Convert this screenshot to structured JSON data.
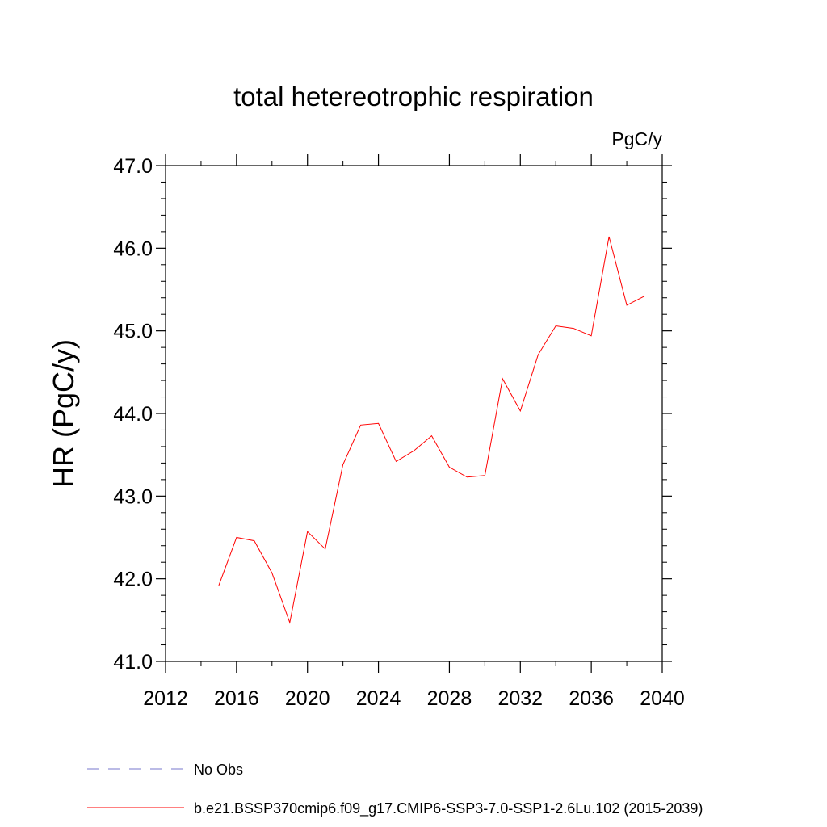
{
  "chart_data": {
    "type": "line",
    "title": "total hetereotrophic respiration",
    "units": "PgC/y",
    "ylabel": "HR  (PgC/y)",
    "xlabel": "",
    "xlim": [
      2012,
      2040
    ],
    "ylim": [
      41.0,
      47.0
    ],
    "x_ticks": [
      2012,
      2016,
      2020,
      2024,
      2028,
      2032,
      2036,
      2040
    ],
    "y_ticks": [
      "41.0",
      "42.0",
      "43.0",
      "44.0",
      "45.0",
      "46.0",
      "47.0"
    ],
    "series": [
      {
        "name": "b.e21.BSSP370cmip6.f09_g17.CMIP6-SSP3-7.0-SSP1-2.6Lu.102 (2015-2039)",
        "color": "#ff0000",
        "x": [
          2015,
          2016,
          2017,
          2018,
          2019,
          2020,
          2021,
          2022,
          2023,
          2024,
          2025,
          2026,
          2027,
          2028,
          2029,
          2030,
          2031,
          2032,
          2033,
          2034,
          2035,
          2036,
          2037,
          2038,
          2039
        ],
        "y": [
          41.92,
          42.5,
          42.46,
          42.07,
          41.47,
          42.57,
          42.36,
          43.38,
          43.86,
          43.88,
          43.42,
          43.55,
          43.73,
          43.35,
          43.23,
          43.25,
          44.42,
          44.03,
          44.71,
          45.06,
          45.03,
          44.94,
          46.14,
          45.31,
          45.42
        ]
      }
    ],
    "legend": [
      {
        "label": "No Obs",
        "color": "#7777cc",
        "style": "dashed"
      },
      {
        "label": "b.e21.BSSP370cmip6.f09_g17.CMIP6-SSP3-7.0-SSP1-2.6Lu.102 (2015-2039)",
        "color": "#ff0000",
        "style": "solid"
      }
    ]
  }
}
